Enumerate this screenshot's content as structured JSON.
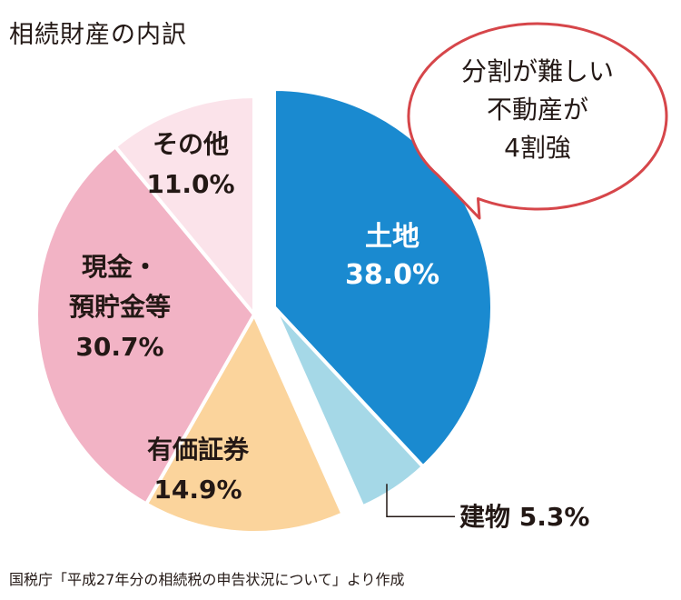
{
  "title": "相続財産の内訳",
  "source": "国税庁「平成27年分の相続税の申告状況について」より作成",
  "callout": {
    "lines": [
      "分割が難しい",
      "不動産が",
      "4割強"
    ]
  },
  "colors": {
    "land": "#1a8ad0",
    "building": "#a5d8e7",
    "securities": "#fbd49c",
    "cash": "#f2b3c5",
    "other": "#fbe3ea",
    "callout_border": "#d6464a",
    "text_dark": "#231815",
    "text_light": "#ffffff"
  },
  "chart_data": {
    "type": "pie",
    "title": "相続財産の内訳",
    "unit": "%",
    "slices": [
      {
        "key": "land",
        "label_lines": [
          "土地"
        ],
        "value": 38.0,
        "value_text": "38.0%",
        "color": "#1a8ad0",
        "exploded": true
      },
      {
        "key": "building",
        "label_lines": [
          "建物 5.3%"
        ],
        "value": 5.3,
        "value_text": "5.3%",
        "color": "#a5d8e7",
        "exploded": true,
        "external_label": true
      },
      {
        "key": "securities",
        "label_lines": [
          "有価証券"
        ],
        "value": 14.9,
        "value_text": "14.9%",
        "color": "#fbd49c",
        "exploded": false
      },
      {
        "key": "cash",
        "label_lines": [
          "現金・",
          "預貯金等"
        ],
        "value": 30.7,
        "value_text": "30.7%",
        "color": "#f2b3c5",
        "exploded": false
      },
      {
        "key": "other",
        "label_lines": [
          "その他"
        ],
        "value": 11.0,
        "value_text": "11.0%",
        "color": "#fbe3ea",
        "exploded": false
      }
    ]
  }
}
